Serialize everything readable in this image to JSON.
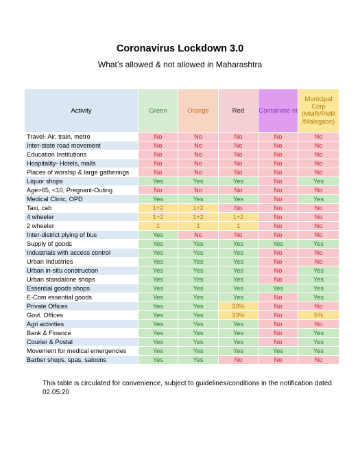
{
  "title": "Coronavirus Lockdown 3.0",
  "subtitle": "What’s allowed & not allowed in Maharashtra",
  "headers": {
    "activity": "Activity",
    "green": "Green",
    "orange": "Orange",
    "red": "Red",
    "containment": "Containme nt",
    "municipal": "Municipal Corp (MMR/PMR /Malegaon)"
  },
  "colors": {
    "yes_bg": "#c9e9c4",
    "yes_text": "#1f7a1f",
    "no_bg": "#f7c7cc",
    "no_text": "#c3222c",
    "conditional_bg": "#fbe39a",
    "conditional_text": "#b0770a"
  },
  "rows": [
    {
      "activity": "Travel- Air, train, metro",
      "values": [
        "No",
        "No",
        "No",
        "No",
        "No"
      ]
    },
    {
      "activity": "Inter-state road movement",
      "values": [
        "No",
        "No",
        "No",
        "No",
        "No"
      ]
    },
    {
      "activity": "Education Institutions",
      "values": [
        "No",
        "No",
        "No",
        "No",
        "No"
      ]
    },
    {
      "activity": "Hospitality- Hotels, malls",
      "values": [
        "No",
        "No",
        "No",
        "No",
        "No"
      ]
    },
    {
      "activity": "Places of worship & large gatherings",
      "values": [
        "No",
        "No",
        "No",
        "No",
        "No"
      ]
    },
    {
      "activity": "Liquor shops",
      "values": [
        "Yes",
        "Yes",
        "Yes",
        "No",
        "Yes"
      ]
    },
    {
      "activity": "Age>65, <10, Pregnant-Outing",
      "values": [
        "No",
        "No",
        "No",
        "No",
        "No"
      ]
    },
    {
      "activity": "Medical Clinic, OPD",
      "values": [
        "Yes",
        "Yes",
        "Yes",
        "No",
        "Yes"
      ]
    },
    {
      "activity": "Taxi, cab",
      "values": [
        "1+2",
        "1+2",
        "No",
        "No",
        "No"
      ]
    },
    {
      "activity": "4 wheeler",
      "values": [
        "1+2",
        "1+2",
        "1+2",
        "No",
        "No"
      ]
    },
    {
      "activity": "2 wheeler",
      "values": [
        "1",
        "1",
        "1",
        "No",
        "No"
      ]
    },
    {
      "activity": "Inter-district plying of bus",
      "values": [
        "Yes",
        "No",
        "No",
        "No",
        "No"
      ]
    },
    {
      "activity": "Supply of goods",
      "values": [
        "Yes",
        "Yes",
        "Yes",
        "Yes",
        "Yes"
      ]
    },
    {
      "activity": "Industrials with access control",
      "values": [
        "Yes",
        "Yes",
        "Yes",
        "No",
        "No"
      ]
    },
    {
      "activity": "Urban Industries",
      "values": [
        "Yes",
        "Yes",
        "Yes",
        "No",
        "No"
      ]
    },
    {
      "activity": "Urban in-situ construction",
      "values": [
        "Yes",
        "Yes",
        "Yes",
        "No",
        "Yes"
      ]
    },
    {
      "activity": "Urban standalone shops",
      "values": [
        "Yes",
        "Yes",
        "Yes",
        "No",
        "Yes"
      ]
    },
    {
      "activity": "Essential goods shops",
      "values": [
        "Yes",
        "Yes",
        "Yes",
        "Yes",
        "Yes"
      ]
    },
    {
      "activity": "E-Com essential goods",
      "values": [
        "Yes",
        "Yes",
        "Yes",
        "No",
        "Yes"
      ]
    },
    {
      "activity": "Private Offices",
      "values": [
        "Yes",
        "Yes",
        "33%",
        "No",
        "No"
      ]
    },
    {
      "activity": "Govt. Offices",
      "values": [
        "Yes",
        "Yes",
        "33%",
        "No",
        "5%"
      ]
    },
    {
      "activity": "Agri activities",
      "values": [
        "Yes",
        "Yes",
        "Yes",
        "No",
        "No"
      ]
    },
    {
      "activity": "Bank & Finance",
      "values": [
        "Yes",
        "Yes",
        "Yes",
        "No",
        "Yes"
      ]
    },
    {
      "activity": "Courier & Postal",
      "values": [
        "Yes",
        "Yes",
        "Yes",
        "No",
        "Yes"
      ]
    },
    {
      "activity": "Movement for medical emergencies",
      "values": [
        "Yes",
        "Yes",
        "Yes",
        "Yes",
        "Yes"
      ]
    },
    {
      "activity": "Barber shops, spas, saloons",
      "values": [
        "Yes",
        "Yes",
        "No",
        "No",
        "No"
      ]
    }
  ],
  "footnote": "This table is circulated for convenience, subject to guidelines/conditions in the notification dated 02.05.20"
}
